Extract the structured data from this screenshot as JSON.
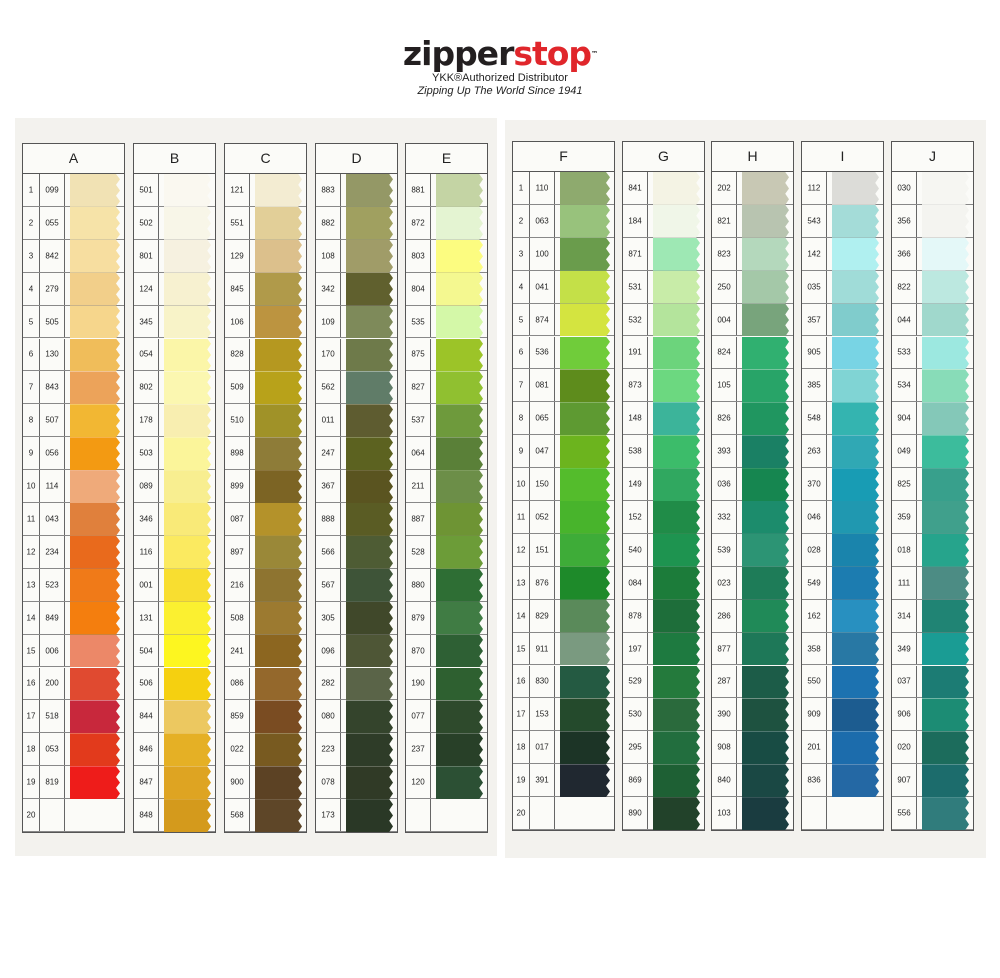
{
  "logo": {
    "word_dark": "zipper",
    "word_red": "stop",
    "tm": "™",
    "subtitle": "YKK®Authorized Distributor",
    "tagline": "Zipping Up The World Since 1941"
  },
  "row_numbers": [
    "1",
    "2",
    "3",
    "4",
    "5",
    "6",
    "7",
    "8",
    "9",
    "10",
    "11",
    "12",
    "13",
    "14",
    "15",
    "16",
    "17",
    "18",
    "19",
    "20"
  ],
  "panels": [
    {
      "columns": [
        {
          "letter": "A",
          "codes": [
            "099",
            "055",
            "842",
            "279",
            "505",
            "130",
            "843",
            "507",
            "056",
            "114",
            "043",
            "234",
            "523",
            "849",
            "006",
            "200",
            "518",
            "053",
            "819",
            ""
          ],
          "colors": [
            "#f1e2b4",
            "#f6e3a8",
            "#f7dea0",
            "#f2cf8a",
            "#f6d68c",
            "#f0bd5a",
            "#eca35a",
            "#f2b733",
            "#f39a12",
            "#efaa7a",
            "#e0803c",
            "#e96a1c",
            "#f07a18",
            "#f47e0e",
            "#ec8868",
            "#e04a30",
            "#c8283c",
            "#e23a1c",
            "#ee1c1a",
            ""
          ]
        },
        {
          "letter": "B",
          "codes": [
            "501",
            "502",
            "801",
            "124",
            "345",
            "054",
            "802",
            "178",
            "503",
            "089",
            "346",
            "116",
            "001",
            "131",
            "504",
            "506",
            "844",
            "846",
            "847",
            "848"
          ],
          "colors": [
            "#faf8f0",
            "#f8f6e8",
            "#f6f1e0",
            "#f7f1d0",
            "#f8f3c8",
            "#fbf6a8",
            "#fbf7b0",
            "#f8eeb0",
            "#fbf59a",
            "#f8ee90",
            "#f9ea78",
            "#fbea60",
            "#f8de30",
            "#fbf030",
            "#fdf620",
            "#f5d010",
            "#ecc860",
            "#e5b025",
            "#dea422",
            "#d49a1c"
          ]
        },
        {
          "letter": "C",
          "codes": [
            "121",
            "551",
            "129",
            "845",
            "106",
            "828",
            "509",
            "510",
            "898",
            "899",
            "087",
            "897",
            "216",
            "508",
            "241",
            "086",
            "859",
            "022",
            "900",
            "568"
          ],
          "colors": [
            "#f3ecd2",
            "#e2cf98",
            "#dcc08c",
            "#b09a4a",
            "#bc9440",
            "#b59820",
            "#b8a21a",
            "#a09228",
            "#8e7c38",
            "#7c6424",
            "#b4922a",
            "#9a8838",
            "#8e7430",
            "#9c7a30",
            "#8c6620",
            "#94682c",
            "#7a4c22",
            "#785a20",
            "#5c4224",
            "#5e4628"
          ]
        },
        {
          "letter": "D",
          "codes": [
            "883",
            "882",
            "108",
            "342",
            "109",
            "170",
            "562",
            "011",
            "247",
            "367",
            "888",
            "566",
            "567",
            "305",
            "096",
            "282",
            "080",
            "223",
            "078",
            "173"
          ],
          "colors": [
            "#949866",
            "#a0a060",
            "#a09c68",
            "#60602e",
            "#7e8a5a",
            "#6e7a4a",
            "#607c68",
            "#5e5c30",
            "#5c6220",
            "#5a5420",
            "#5a5c24",
            "#4e5c34",
            "#3e5438",
            "#40482a",
            "#4e5636",
            "#5a6448",
            "#34442c",
            "#2e3c28",
            "#303a26",
            "#2a3826"
          ]
        },
        {
          "letter": "E",
          "codes": [
            "881",
            "872",
            "803",
            "804",
            "535",
            "875",
            "827",
            "537",
            "064",
            "211",
            "887",
            "528",
            "880",
            "879",
            "870",
            "190",
            "077",
            "237",
            "120",
            ""
          ],
          "colors": [
            "#c4d4a4",
            "#e4f4d2",
            "#fcfc80",
            "#f4f890",
            "#d4f8a8",
            "#9cc428",
            "#90c030",
            "#6e9a3c",
            "#5a8038",
            "#6c8e48",
            "#6e9434",
            "#6c9c38",
            "#2e6e34",
            "#407c44",
            "#2e6034",
            "#2e6030",
            "#2e4a2c",
            "#284028",
            "#2c5034",
            ""
          ]
        }
      ]
    },
    {
      "columns": [
        {
          "letter": "F",
          "codes": [
            "110",
            "063",
            "100",
            "041",
            "874",
            "536",
            "081",
            "065",
            "047",
            "150",
            "052",
            "151",
            "876",
            "829",
            "911",
            "830",
            "153",
            "017",
            "391",
            ""
          ],
          "colors": [
            "#8eaa6e",
            "#98c27c",
            "#6a9c4c",
            "#c4e048",
            "#d4e440",
            "#70cc3a",
            "#5e8c1c",
            "#5e9a32",
            "#6cb41e",
            "#54bc2c",
            "#48b42c",
            "#3eac38",
            "#1e8a2a",
            "#5a8a5a",
            "#7a9a80",
            "#245a42",
            "#244a2c",
            "#1c3426",
            "#202830",
            ""
          ]
        },
        {
          "letter": "G",
          "codes": [
            "841",
            "184",
            "871",
            "531",
            "532",
            "191",
            "873",
            "148",
            "538",
            "149",
            "152",
            "540",
            "084",
            "878",
            "197",
            "529",
            "530",
            "295",
            "869",
            "890"
          ],
          "colors": [
            "#f4f3e4",
            "#f0f6e8",
            "#9ee8b4",
            "#c8eca8",
            "#b4e49c",
            "#6cd47c",
            "#6cd880",
            "#3cb49a",
            "#3cbc6a",
            "#30a860",
            "#208c48",
            "#1e9450",
            "#1c7c3a",
            "#1e6e3a",
            "#1e7a40",
            "#247a3c",
            "#2a6a3c",
            "#226e3e",
            "#1e6034",
            "#22422a"
          ]
        },
        {
          "letter": "H",
          "codes": [
            "202",
            "821",
            "823",
            "250",
            "004",
            "824",
            "105",
            "826",
            "393",
            "036",
            "332",
            "539",
            "023",
            "286",
            "877",
            "287",
            "390",
            "908",
            "840",
            "103"
          ],
          "colors": [
            "#c8c8b4",
            "#b8c4b0",
            "#b4d8bc",
            "#a4c8a8",
            "#78a47c",
            "#30b070",
            "#28a468",
            "#209660",
            "#1a8064",
            "#168650",
            "#1c8c6c",
            "#2c9474",
            "#1e7c58",
            "#208a58",
            "#1e7858",
            "#1c5c48",
            "#1e5240",
            "#184c44",
            "#1a4844",
            "#1a3c40"
          ]
        },
        {
          "letter": "I",
          "codes": [
            "112",
            "543",
            "142",
            "035",
            "357",
            "905",
            "385",
            "548",
            "263",
            "370",
            "046",
            "028",
            "549",
            "162",
            "358",
            "550",
            "909",
            "201",
            "836",
            ""
          ],
          "colors": [
            "#dcdcd8",
            "#a4dcd8",
            "#b0f0f0",
            "#a0dcd8",
            "#80cccc",
            "#78d4e4",
            "#80d4d4",
            "#34b4b0",
            "#30a8b4",
            "#189cb4",
            "#2098b0",
            "#1a84ac",
            "#1c7cb0",
            "#2890c0",
            "#2878a4",
            "#1c72b0",
            "#1c5c90",
            "#1c6cac",
            "#2468a4",
            ""
          ]
        },
        {
          "letter": "J",
          "codes": [
            "030",
            "356",
            "366",
            "822",
            "044",
            "533",
            "534",
            "904",
            "049",
            "825",
            "359",
            "018",
            "111",
            "314",
            "349",
            "037",
            "906",
            "020",
            "907",
            "556"
          ],
          "colors": [
            "#f6f6f2",
            "#f4f4f0",
            "#e4f8f8",
            "#bce8e0",
            "#a0d8cc",
            "#9ce8e0",
            "#88dcb8",
            "#84c8b8",
            "#3cbc9c",
            "#38a08c",
            "#40a08c",
            "#26a48c",
            "#4c8c84",
            "#208474",
            "#1a9c94",
            "#1c7c74",
            "#1c8c74",
            "#1c6c5c",
            "#1c6c6c",
            "#307c7c"
          ]
        }
      ]
    }
  ]
}
